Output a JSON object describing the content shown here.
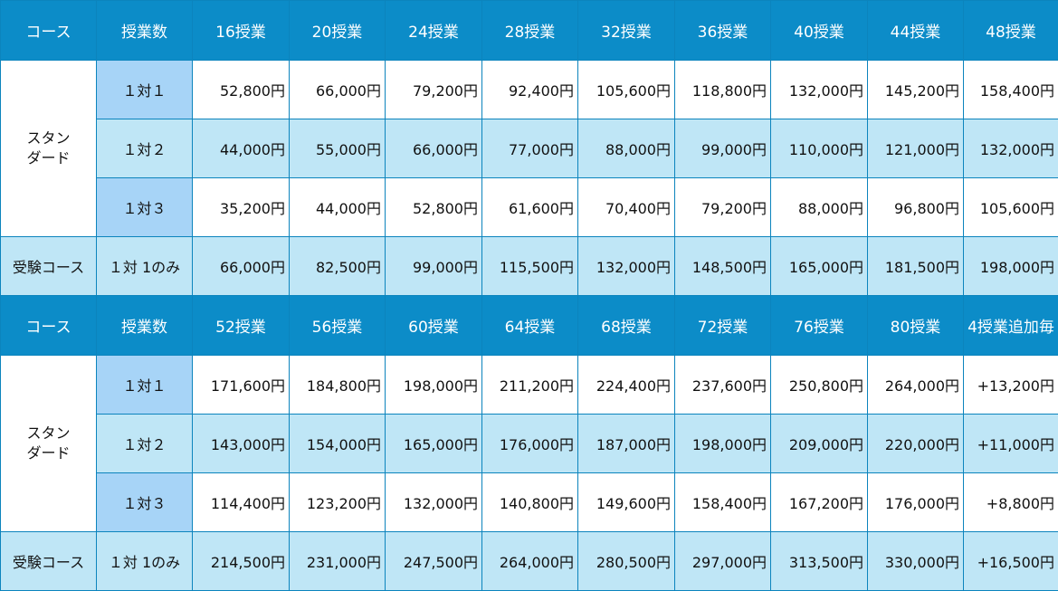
{
  "table1": {
    "header": [
      "コース",
      "授業数",
      "16授業",
      "20授業",
      "24授業",
      "28授業",
      "32授業",
      "36授業",
      "40授業",
      "44授業",
      "48授業"
    ],
    "standard_label": "スタン ダード",
    "rows": [
      {
        "ratio": "１対１",
        "values": [
          "52,800円",
          "66,000円",
          "79,200円",
          "92,400円",
          "105,600円",
          "118,800円",
          "132,000円",
          "145,200円",
          "158,400円"
        ]
      },
      {
        "ratio": "１対２",
        "values": [
          "44,000円",
          "55,000円",
          "66,000円",
          "77,000円",
          "88,000円",
          "99,000円",
          "110,000円",
          "121,000円",
          "132,000円"
        ]
      },
      {
        "ratio": "１対３",
        "values": [
          "35,200円",
          "44,000円",
          "52,800円",
          "61,600円",
          "70,400円",
          "79,200円",
          "88,000円",
          "96,800円",
          "105,600円"
        ]
      }
    ],
    "exam": {
      "course": "受験コース",
      "ratio": "１対 1のみ",
      "values": [
        "66,000円",
        "82,500円",
        "99,000円",
        "115,500円",
        "132,000円",
        "148,500円",
        "165,000円",
        "181,500円",
        "198,000円"
      ]
    }
  },
  "table2": {
    "header": [
      "コース",
      "授業数",
      "52授業",
      "56授業",
      "60授業",
      "64授業",
      "68授業",
      "72授業",
      "76授業",
      "80授業",
      "4授業追加毎"
    ],
    "standard_label": "スタン ダード",
    "rows": [
      {
        "ratio": "１対１",
        "values": [
          "171,600円",
          "184,800円",
          "198,000円",
          "211,200円",
          "224,400円",
          "237,600円",
          "250,800円",
          "264,000円",
          "+13,200円"
        ]
      },
      {
        "ratio": "１対２",
        "values": [
          "143,000円",
          "154,000円",
          "165,000円",
          "176,000円",
          "187,000円",
          "198,000円",
          "209,000円",
          "220,000円",
          "+11,000円"
        ]
      },
      {
        "ratio": "１対３",
        "values": [
          "114,400円",
          "123,200円",
          "132,000円",
          "140,800円",
          "149,600円",
          "158,400円",
          "167,200円",
          "176,000円",
          "+8,800円"
        ]
      }
    ],
    "exam": {
      "course": "受験コース",
      "ratio": "１対 1のみ",
      "values": [
        "214,500円",
        "231,000円",
        "247,500円",
        "264,000円",
        "280,500円",
        "297,000円",
        "313,500円",
        "330,000円",
        "+16,500円"
      ]
    }
  }
}
